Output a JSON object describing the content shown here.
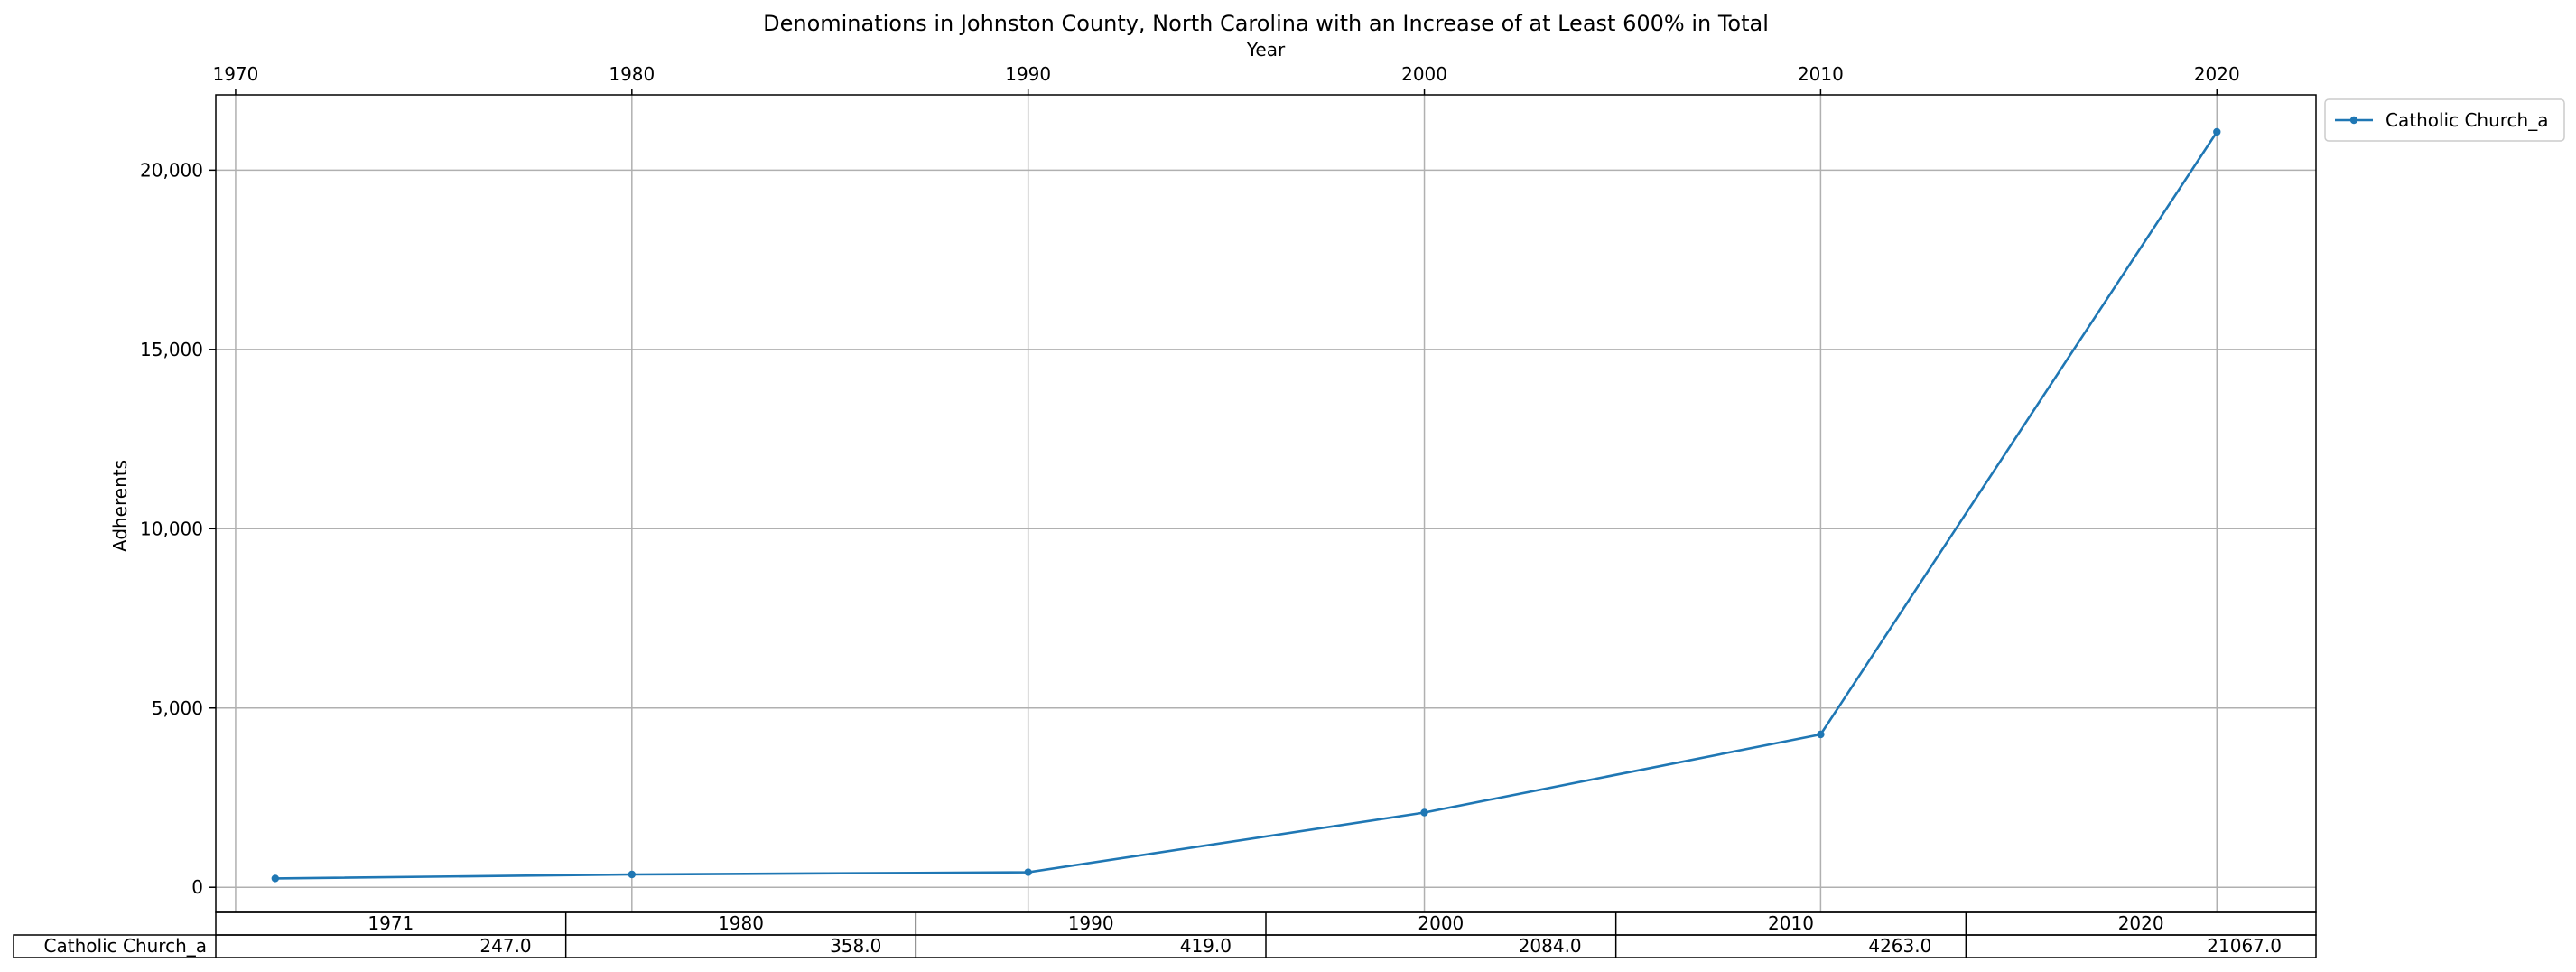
{
  "chart_data": {
    "type": "line",
    "title": "Denominations in Johnston County, North Carolina with an Increase of at Least 600% in Total",
    "xlabel": "Year",
    "ylabel": "Adherents",
    "x": [
      1971,
      1980,
      1990,
      2000,
      2010,
      2020
    ],
    "x_ticks": [
      1970,
      1980,
      1990,
      2000,
      2010,
      2020
    ],
    "x_tick_labels": [
      "1970",
      "1980",
      "1990",
      "2000",
      "2010",
      "2020"
    ],
    "xlim": [
      1969.5,
      2022.5
    ],
    "ylim": [
      -700,
      22100
    ],
    "y_ticks": [
      0,
      5000,
      10000,
      15000,
      20000
    ],
    "y_tick_labels": [
      "0",
      "5,000",
      "10,000",
      "15,000",
      "20,000"
    ],
    "grid": true,
    "legend_position": "outside-top-right",
    "series": [
      {
        "name": "Catholic Church_a",
        "color": "#1f77b4",
        "values": [
          247.0,
          358.0,
          419.0,
          2084.0,
          4263.0,
          21067.0
        ]
      }
    ],
    "table": {
      "columns": [
        "1971",
        "1980",
        "1990",
        "2000",
        "2010",
        "2020"
      ],
      "rows": [
        {
          "label": "Catholic Church_a",
          "cells": [
            "247.0",
            "358.0",
            "419.0",
            "2084.0",
            "4263.0",
            "21067.0"
          ]
        }
      ]
    }
  }
}
